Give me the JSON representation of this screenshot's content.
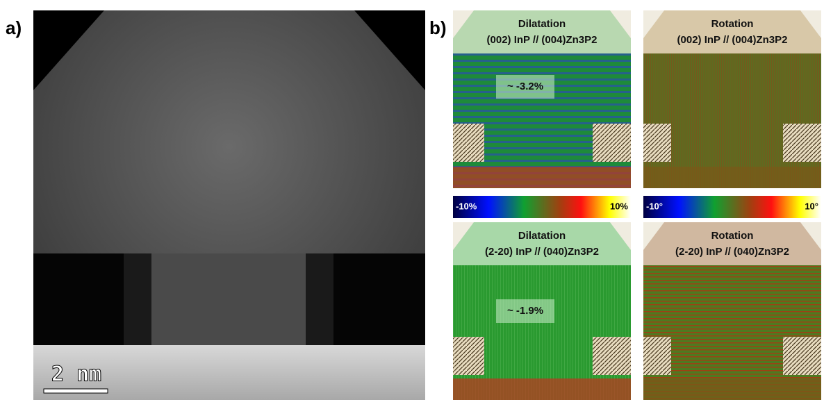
{
  "panel_a": {
    "label": "a)",
    "scale_bar": "2 nm"
  },
  "panel_b": {
    "label": "b)",
    "maps": [
      {
        "title": "Dilatation",
        "subtitle": "(002) InP // (004)Zn3P2",
        "annotation": "~ -3.2%"
      },
      {
        "title": "Rotation",
        "subtitle": "(002) InP // (004)Zn3P2"
      },
      {
        "title": "Dilatation",
        "subtitle": "(2-20) InP // (040)Zn3P2",
        "annotation": "~ -1.9%"
      },
      {
        "title": "Rotation",
        "subtitle": "(2-20) InP // (040)Zn3P2"
      }
    ],
    "colorbars": [
      {
        "min_label": "-10%",
        "max_label": "10%"
      },
      {
        "min_label": "-10°",
        "max_label": "10°"
      }
    ]
  }
}
